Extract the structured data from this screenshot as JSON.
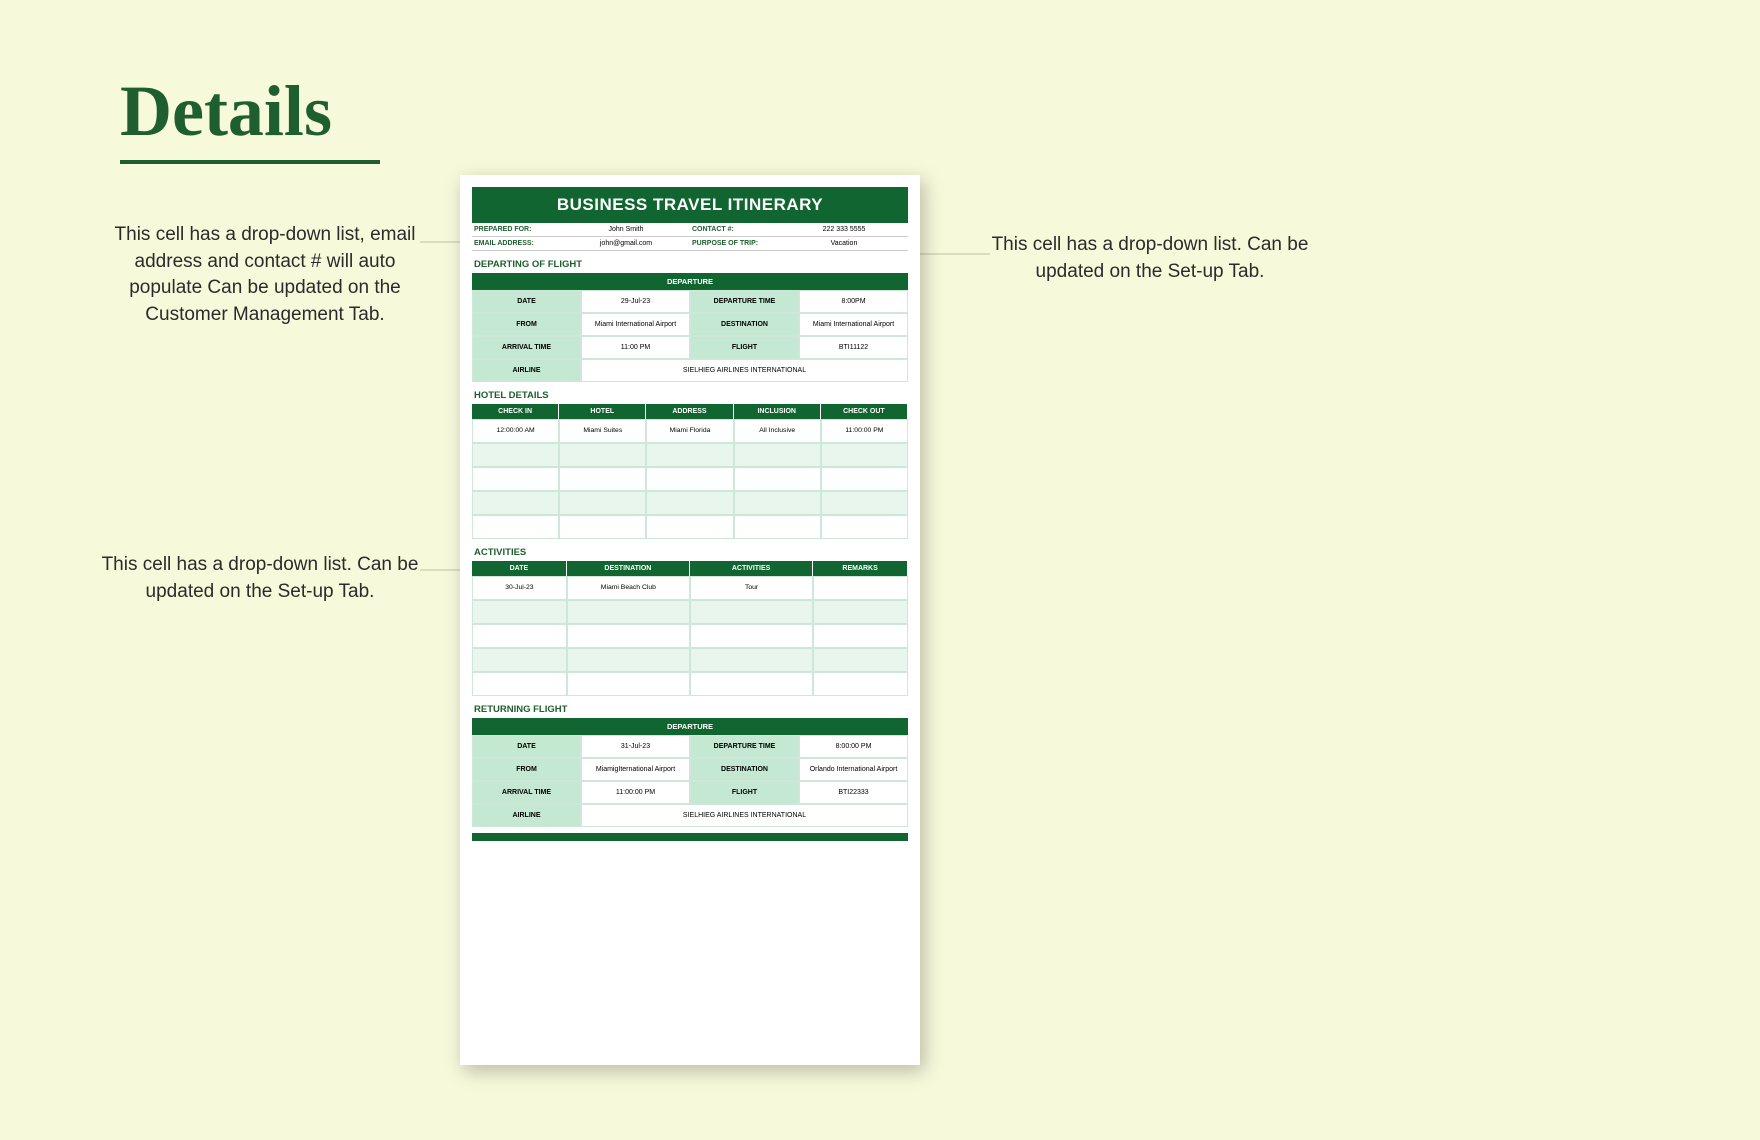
{
  "page": {
    "title": "Details"
  },
  "annotations": {
    "left_top": "This cell has a drop-down list, email address and contact # will auto populate Can be updated on the Customer Management Tab.",
    "left_mid": "This cell has a drop-down list. Can be updated on the Set-up Tab.",
    "right_top": "This cell has a drop-down list. Can be updated on the Set-up Tab."
  },
  "colors": {
    "background": "#f7f9db",
    "accent_dark": "#116530",
    "accent_light": "#c4e8d1",
    "row_alt": "#e8f6ee",
    "text_dark": "#2b2b2b"
  },
  "doc": {
    "title": "BUSINESS TRAVEL ITINERARY",
    "info": {
      "prepared_for_label": "PREPARED FOR:",
      "prepared_for": "John Smith",
      "contact_label": "CONTACT #:",
      "contact": "222 333 5555",
      "email_label": "EMAIL ADDRESS:",
      "email": "john@gmail.com",
      "purpose_label": "PURPOSE OF TRIP:",
      "purpose": "Vacation"
    },
    "departing": {
      "section": "DEPARTING OF FLIGHT",
      "header": "DEPARTURE",
      "labels": {
        "date": "DATE",
        "dep_time": "DEPARTURE TIME",
        "from": "FROM",
        "dest": "DESTINATION",
        "arr_time": "ARRIVAL TIME",
        "flight": "FLIGHT",
        "airline": "AIRLINE"
      },
      "vals": {
        "date": "29-Jul-23",
        "dep_time": "8:00PM",
        "from": "Miami International Airport",
        "dest": "Miami International Airport",
        "arr_time": "11:00 PM",
        "flight": "BTI11122",
        "airline": "SIELHIEG AIRLINES INTERNATIONAL"
      }
    },
    "hotel": {
      "section": "HOTEL DETAILS",
      "cols": [
        "CHECK IN",
        "HOTEL",
        "ADDRESS",
        "INCLUSION",
        "CHECK OUT"
      ],
      "rows": [
        [
          "12:00:00 AM",
          "Miami Suites",
          "Miami Florida",
          "All Inclusive",
          "11:00:00 PM"
        ],
        [
          "",
          "",
          "",
          "",
          ""
        ],
        [
          "",
          "",
          "",
          "",
          ""
        ],
        [
          "",
          "",
          "",
          "",
          ""
        ],
        [
          "",
          "",
          "",
          "",
          ""
        ]
      ]
    },
    "activities": {
      "section": "ACTIVITIES",
      "cols": [
        "DATE",
        "DESTINATION",
        "ACTIVITIES",
        "REMARKS"
      ],
      "rows": [
        [
          "30-Jul-23",
          "Miami Beach Club",
          "Tour",
          ""
        ],
        [
          "",
          "",
          "",
          ""
        ],
        [
          "",
          "",
          "",
          ""
        ],
        [
          "",
          "",
          "",
          ""
        ],
        [
          "",
          "",
          "",
          ""
        ]
      ]
    },
    "returning": {
      "section": "RETURNING FLIGHT",
      "header": "DEPARTURE",
      "labels": {
        "date": "DATE",
        "dep_time": "DEPARTURE TIME",
        "from": "FROM",
        "dest": "DESTINATION",
        "arr_time": "ARRIVAL TIME",
        "flight": "FLIGHT",
        "airline": "AIRLINE"
      },
      "vals": {
        "date": "31-Jul-23",
        "dep_time": "8:00:00 PM",
        "from": "MiamigIternational Airport",
        "dest": "Orlando International Airport",
        "arr_time": "11:00:00 PM",
        "flight": "BTI22333",
        "airline": "SIELHIEG AIRLINES INTERNATIONAL"
      }
    }
  }
}
